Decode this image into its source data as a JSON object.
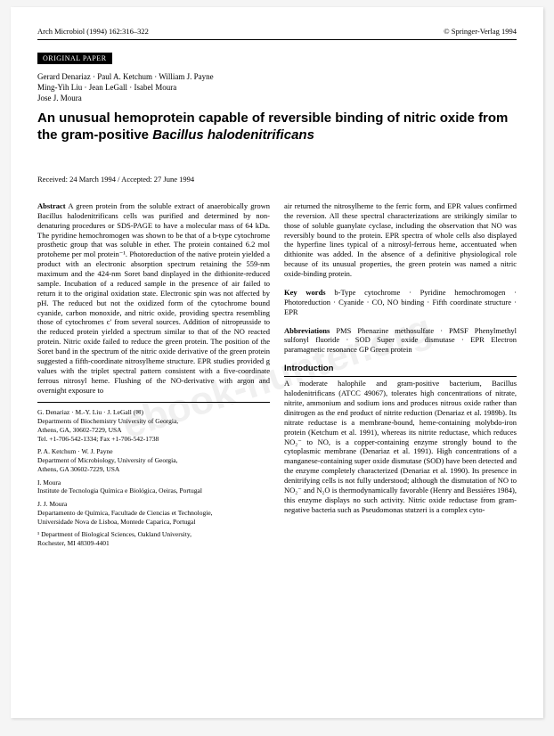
{
  "header": {
    "journal": "Arch Microbiol (1994) 162:316–322",
    "copyright": "© Springer-Verlag 1994"
  },
  "badge": "ORIGINAL PAPER",
  "authors_line1": "Gerard Denariaz · Paul A. Ketchum · William J. Payne",
  "authors_line2": "Ming-Yih Liu · Jean LeGall · Isabel Moura",
  "authors_line3": "Jose J. Moura",
  "title_part1": "An unusual hemoprotein capable of reversible binding of nitric oxide from the gram-positive ",
  "title_italic": "Bacillus halodenitrificans",
  "dates": "Received: 24 March 1994 / Accepted: 27 June 1994",
  "abstract_label": "Abstract",
  "abstract_body": " A green protein from the soluble extract of anaerobically grown Bacillus halodenitrificans cells was purified and determined by non-denaturing procedures or SDS-PAGE to have a molecular mass of 64 kDa. The pyridine hemochromogen was shown to be that of a b-type cytochrome prosthetic group that was soluble in ether. The protein contained 6.2 mol protoheme per mol protein⁻¹. Photoreduction of the native protein yielded a product with an electronic absorption spectrum retaining the 559-nm maximum and the 424-nm Soret band displayed in the dithionite-reduced sample. Incubation of a reduced sample in the presence of air failed to return it to the original oxidation state. Electronic spin was not affected by pH. The reduced but not the oxidized form of the cytochrome bound cyanide, carbon monoxide, and nitric oxide, providing spectra resembling those of cytochromes c′ from several sources. Addition of nitroprusside to the reduced protein yielded a spectrum similar to that of the NO reacted protein. Nitric oxide failed to reduce the green protein. The position of the Soret band in the spectrum of the nitric oxide derivative of the green protein suggested a fifth-coordinate nitrosylheme structure. EPR studies provided g values with the triplet spectral pattern consistent with a five-coordinate ferrous nitrosyl heme. Flushing of the NO-derivative with argon and overnight exposure to",
  "col2_top": "air returned the nitrosylheme to the ferric form, and EPR values confirmed the reversion. All these spectral characterizations are strikingly similar to those of soluble guanylate cyclase, including the observation that NO was reversibly bound to the protein. EPR spectra of whole cells also displayed the hyperfine lines typical of a nitrosyl-ferrous heme, accentuated when dithionite was added. In the absence of a definitive physiological role because of its unusual properties, the green protein was named a nitric oxide-binding protein.",
  "keywords_label": "Key words",
  "keywords_body": " b-Type cytochrome · Pyridine hemochromogen · Photoreduction · Cyanide · CO, NO binding · Fifth coordinate structure · EPR",
  "abbrev_label": "Abbreviations",
  "abbrev_body": " PMS Phenazine methosulfate · PMSF Phenylmethyl sulfonyl fluoride · SOD Super oxide dismutase · EPR Electron paramagnetic resonance GP Green protein",
  "intro_head": "Introduction",
  "intro_body": "A moderate halophile and gram-positive bacterium, Bacillus halodenitrificans (ATCC 49067), tolerates high concentrations of nitrate, nitrite, ammonium and sodium ions and produces nitrous oxide rather than dinitrogen as the end product of nitrite reduction (Denariaz et al. 1989b). Its nitrate reductase is a membrane-bound, heme-containing molybdo-iron protein (Ketchum et al. 1991), whereas its nitrite reductase, which reduces NO₂⁻ to NO, is a copper-containing enzyme strongly bound to the cytoplasmic membrane (Denariaz et al. 1991). High concentrations of a manganese-containing super oxide dismutase (SOD) have been detected and the enzyme completely characterized (Denariaz et al. 1990). Its presence in denitrifying cells is not fully understood; although the dismutation of NO to NO₂⁻ and N₂O is thermodynamically favorable (Henry and Bessiéres 1984), this enzyme displays no such activity. Nitric oxide reductase from gram-negative bacteria such as Pseudomonas stutzeri is a complex cyto-",
  "affil": {
    "a1": "G. Denariaz · M.-Y. Liu · J. LeGall (✉)\nDepartments of Biochemistry University of Georgia,\nAthens, GA, 30602-7229, USA\nTel. +1-706-542-1334; Fax +1-706-542-1738",
    "a2": "P. A. Ketchum · W. J. Payne\nDepartment of Microbiology, University of Georgia,\nAthens, GA 30602-7229, USA",
    "a3": "I. Moura\nInstitute de Tecnologia Química e Biológica, Oeiras, Portugal",
    "a4": "J. J. Moura\nDepartamento de Química, Facultade de Ciencias et Technologie,\nUniversidade Nova de Lisboa, Montede Caparica, Portugal",
    "a5": "¹ Department of Biological Sciences, Oakland University,\nRochester, MI 48309-4401"
  },
  "watermark": "ebook-hunter.org"
}
